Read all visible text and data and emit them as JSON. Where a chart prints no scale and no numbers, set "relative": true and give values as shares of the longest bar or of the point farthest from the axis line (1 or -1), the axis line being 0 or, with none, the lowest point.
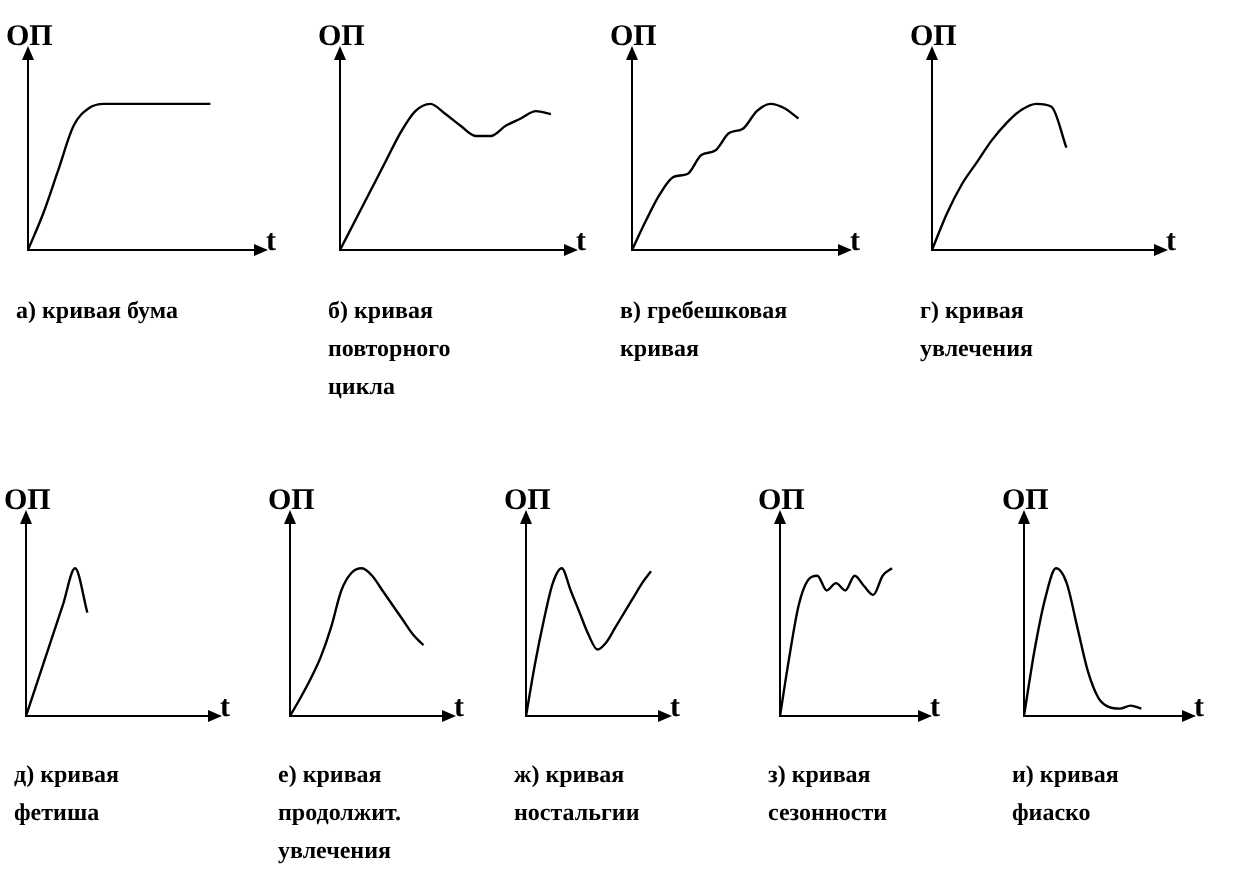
{
  "chart_data": [
    {
      "type": "line",
      "title": "а) кривая бума",
      "ylabel": "ОП",
      "xlabel": "t",
      "relative": true,
      "tick_labels": false,
      "color": "#000000",
      "categories": [
        null,
        null,
        null,
        null,
        null,
        null,
        null,
        null,
        null,
        null,
        null,
        null,
        null,
        null,
        null,
        null
      ],
      "values": [
        0,
        0.25,
        0.55,
        0.85,
        0.97,
        1,
        1,
        1,
        1,
        1,
        1,
        1,
        1,
        null,
        null,
        null
      ]
    },
    {
      "type": "line",
      "title": "б) кривая повторного цикла",
      "ylabel": "ОП",
      "xlabel": "t",
      "relative": true,
      "tick_labels": false,
      "color": "#000000",
      "categories": [
        null,
        null,
        null,
        null,
        null,
        null,
        null,
        null,
        null,
        null,
        null,
        null,
        null,
        null,
        null,
        null
      ],
      "values": [
        0,
        0.2,
        0.4,
        0.6,
        0.8,
        0.95,
        1,
        0.93,
        0.85,
        0.78,
        0.78,
        0.85,
        0.9,
        0.95,
        0.93,
        null
      ]
    },
    {
      "type": "line",
      "title": "в) гребешковая кривая",
      "ylabel": "ОП",
      "xlabel": "t",
      "relative": true,
      "tick_labels": false,
      "color": "#000000",
      "categories": [
        null,
        null,
        null,
        null,
        null,
        null,
        null,
        null,
        null,
        null,
        null,
        null,
        null,
        null,
        null,
        null
      ],
      "values": [
        0,
        0.2,
        0.38,
        0.5,
        0.52,
        0.65,
        0.68,
        0.8,
        0.83,
        0.95,
        1,
        0.97,
        0.9,
        null,
        null,
        null
      ]
    },
    {
      "type": "line",
      "title": "г) кривая увлечения",
      "ylabel": "ОП",
      "xlabel": "t",
      "relative": true,
      "tick_labels": false,
      "color": "#000000",
      "categories": [
        null,
        null,
        null,
        null,
        null,
        null,
        null,
        null,
        null,
        null,
        null,
        null,
        null,
        null,
        null,
        null
      ],
      "values": [
        0,
        0.25,
        0.45,
        0.6,
        0.75,
        0.87,
        0.96,
        1,
        0.98,
        0.7,
        null,
        null,
        null,
        null,
        null,
        null
      ]
    },
    {
      "type": "line",
      "title": "д) кривая фетиша",
      "ylabel": "ОП",
      "xlabel": "t",
      "relative": true,
      "tick_labels": false,
      "color": "#000000",
      "categories": [
        null,
        null,
        null,
        null,
        null,
        null,
        null,
        null,
        null,
        null,
        null,
        null,
        null,
        null,
        null,
        null
      ],
      "values": [
        0,
        0.25,
        0.5,
        0.75,
        1,
        0.7,
        null,
        null,
        null,
        null,
        null,
        null,
        null,
        null,
        null,
        null
      ]
    },
    {
      "type": "line",
      "title": "е) кривая продолжит. увлечения",
      "ylabel": "ОП",
      "xlabel": "t",
      "relative": true,
      "tick_labels": false,
      "color": "#000000",
      "categories": [
        null,
        null,
        null,
        null,
        null,
        null,
        null,
        null,
        null,
        null,
        null,
        null,
        null,
        null,
        null,
        null
      ],
      "values": [
        0,
        0.12,
        0.25,
        0.4,
        0.6,
        0.85,
        0.97,
        1,
        0.95,
        0.85,
        0.75,
        0.65,
        0.55,
        0.48,
        null,
        null
      ]
    },
    {
      "type": "line",
      "title": "ж) кривая ностальгии",
      "ylabel": "ОП",
      "xlabel": "t",
      "relative": true,
      "tick_labels": false,
      "color": "#000000",
      "categories": [
        null,
        null,
        null,
        null,
        null,
        null,
        null,
        null,
        null,
        null,
        null,
        null,
        null,
        null,
        null,
        null
      ],
      "values": [
        0,
        0.35,
        0.65,
        0.9,
        1,
        0.85,
        0.7,
        0.55,
        0.45,
        0.5,
        0.6,
        0.7,
        0.8,
        0.9,
        0.98,
        null
      ]
    },
    {
      "type": "line",
      "title": "з) кривая сезонности",
      "ylabel": "ОП",
      "xlabel": "t",
      "relative": true,
      "tick_labels": false,
      "color": "#000000",
      "categories": [
        null,
        null,
        null,
        null,
        null,
        null,
        null,
        null,
        null,
        null,
        null,
        null,
        null,
        null,
        null,
        null
      ],
      "values": [
        0,
        0.4,
        0.75,
        0.92,
        0.95,
        0.85,
        0.9,
        0.85,
        0.95,
        0.88,
        0.82,
        0.95,
        1,
        null,
        null,
        null
      ]
    },
    {
      "type": "line",
      "title": "и) кривая фиаско",
      "ylabel": "ОП",
      "xlabel": "t",
      "relative": true,
      "tick_labels": false,
      "color": "#000000",
      "categories": [
        null,
        null,
        null,
        null,
        null,
        null,
        null,
        null,
        null,
        null,
        null,
        null,
        null,
        null,
        null,
        null
      ],
      "values": [
        0,
        0.45,
        0.8,
        1,
        0.9,
        0.6,
        0.3,
        0.12,
        0.06,
        0.05,
        0.07,
        0.05,
        null,
        null,
        null,
        null
      ]
    }
  ]
}
